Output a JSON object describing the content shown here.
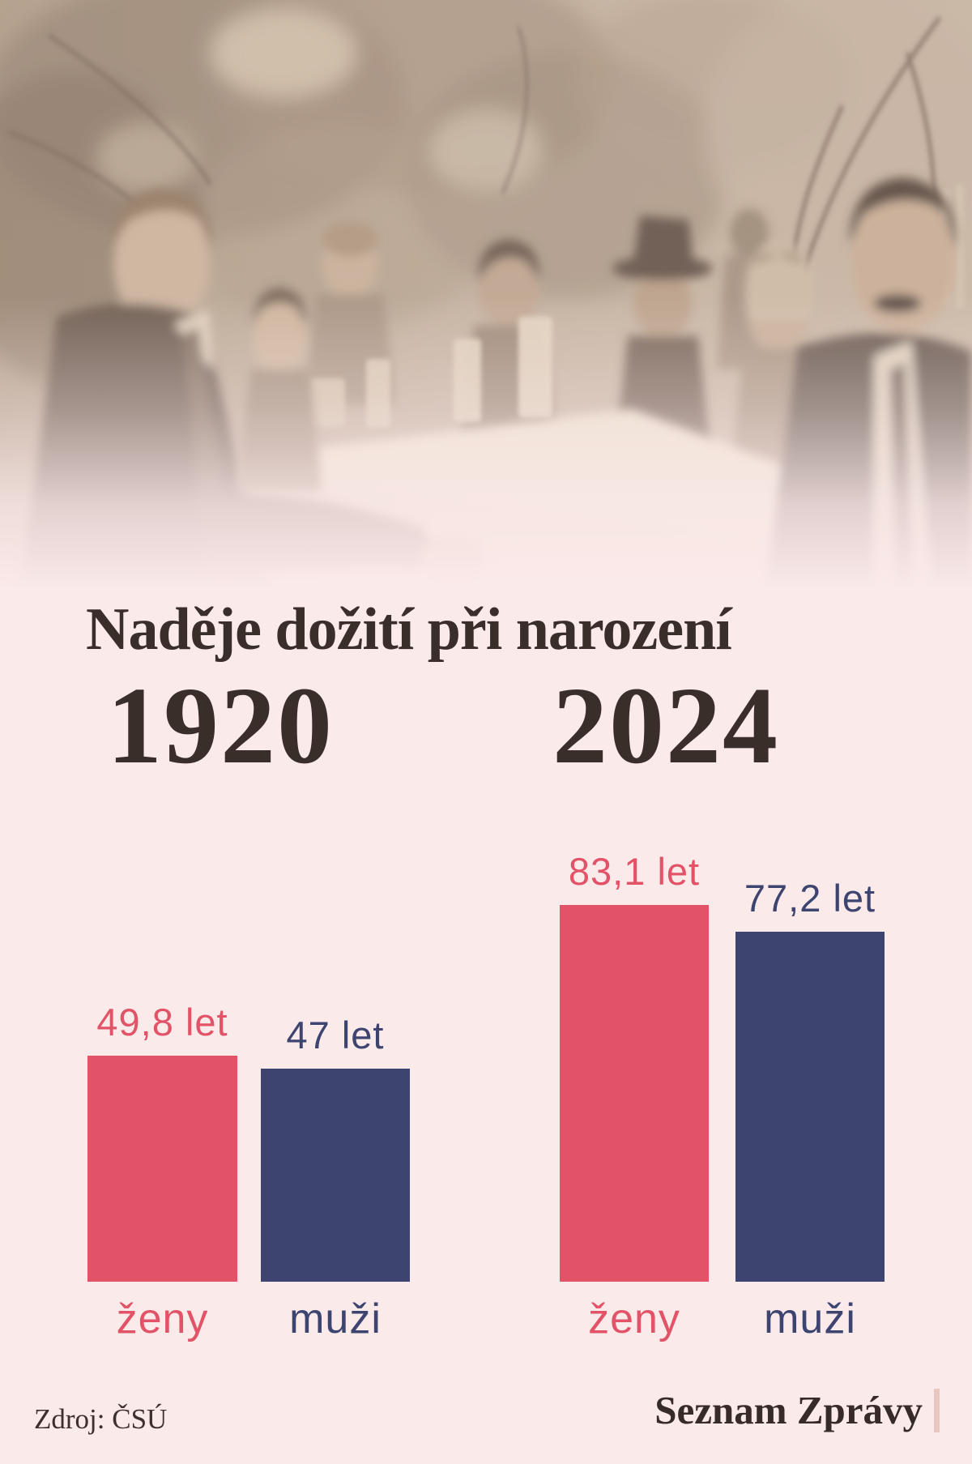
{
  "title": "Naděje dožití při narození",
  "footer": {
    "source": "Zdroj: ČSÚ",
    "brand": "Seznam Zprávy"
  },
  "colors": {
    "background": "#fbeaea",
    "title_text": "#3a2e2b",
    "women": "#e25368",
    "men": "#3e4470",
    "brand_text": "#362b28",
    "brand_accent": "#e9c6c2"
  },
  "chart_data": {
    "type": "bar",
    "title": "Naděje dožití při narození",
    "unit": "let",
    "ylim": [
      0,
      83.1
    ],
    "grid": false,
    "legend_position": "none",
    "groups": [
      {
        "year": "1920",
        "bars": [
          {
            "category": "ženy",
            "value": 49.8,
            "label": "49,8 let",
            "color": "#e25368"
          },
          {
            "category": "muži",
            "value": 47,
            "label": "47 let",
            "color": "#3e4470"
          }
        ]
      },
      {
        "year": "2024",
        "bars": [
          {
            "category": "ženy",
            "value": 83.1,
            "label": "83,1 let",
            "color": "#e25368"
          },
          {
            "category": "muži",
            "value": 77.2,
            "label": "77,2 let",
            "color": "#3e4470"
          }
        ]
      }
    ]
  }
}
